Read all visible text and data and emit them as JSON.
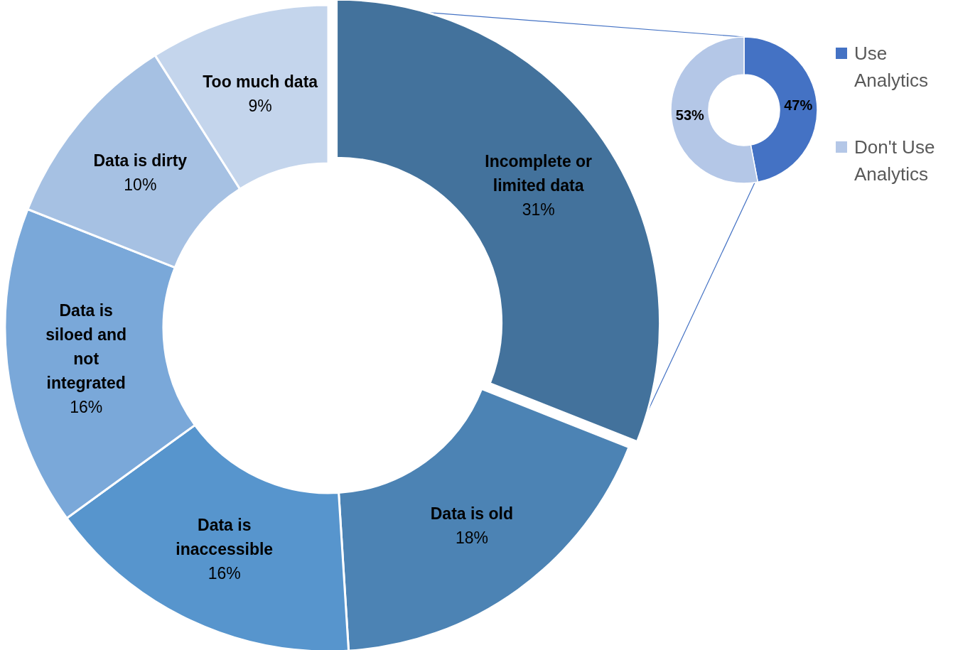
{
  "chart_data": [
    {
      "type": "donut",
      "categories": [
        "Incomplete or limited data",
        "Data is old",
        "Data is inaccessible",
        "Data is siloed and not integrated",
        "Data is dirty",
        "Too much data"
      ],
      "values": [
        31,
        18,
        16,
        16,
        10,
        9
      ],
      "value_labels": [
        "31%",
        "18%",
        "16%",
        "16%",
        "10%",
        "9%"
      ],
      "colors": [
        "#43729c",
        "#4c83b4",
        "#5795cd",
        "#7aa8d9",
        "#a6c1e3",
        "#c4d5ec"
      ]
    },
    {
      "type": "donut",
      "categories": [
        "Use Analytics",
        "Don't Use Analytics"
      ],
      "values": [
        47,
        53
      ],
      "value_labels": [
        "47%",
        "53%"
      ],
      "colors": [
        "#4472c4",
        "#b4c7e7"
      ],
      "legend": "right"
    }
  ]
}
